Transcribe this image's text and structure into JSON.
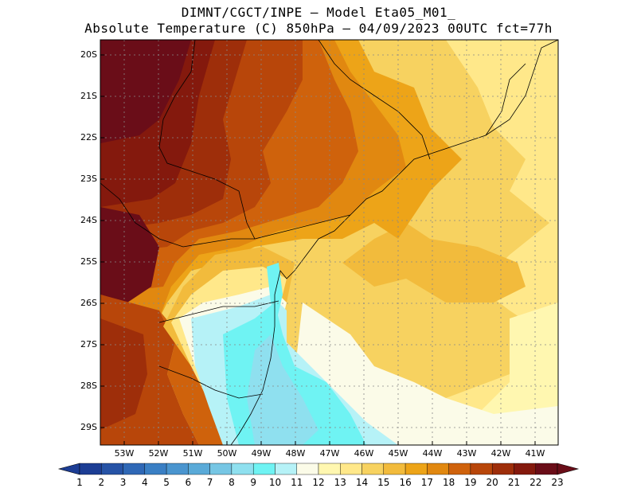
{
  "title": {
    "line1": "DIMNT/CGCT/INPE –  Model Eta05_M01_",
    "line2": "Absolute Temperature (C) 850hPa –  04/09/2023 00UTC fct=77h"
  },
  "map": {
    "lat_labels": [
      "20S",
      "21S",
      "22S",
      "23S",
      "24S",
      "25S",
      "26S",
      "27S",
      "28S",
      "29S"
    ],
    "lon_labels": [
      "53W",
      "52W",
      "51W",
      "50W",
      "49W",
      "48W",
      "47W",
      "46W",
      "45W",
      "44W",
      "43W",
      "42W",
      "41W"
    ]
  },
  "colorbar": {
    "labels": [
      "1",
      "2",
      "3",
      "4",
      "5",
      "6",
      "7",
      "8",
      "9",
      "10",
      "11",
      "12",
      "13",
      "14",
      "15",
      "16",
      "17",
      "18",
      "19",
      "20",
      "21",
      "22",
      "23"
    ],
    "colors": [
      "#1c3d94",
      "#2653a6",
      "#2f68b6",
      "#3a7fc4",
      "#4a95cf",
      "#5aaad8",
      "#76c6e4",
      "#8fe0ef",
      "#6ff3f3",
      "#b6f2f7",
      "#fbfbe8",
      "#fff7b0",
      "#ffe88a",
      "#f7d260",
      "#f2bb3c",
      "#eda418",
      "#e18810",
      "#cf620c",
      "#b8460a",
      "#9e2e0a",
      "#84190d",
      "#6a0d18"
    ]
  },
  "field_colors": {
    "t11": "#fbfbe8",
    "t12": "#fff7b0",
    "t13": "#ffe88a",
    "t14": "#f7d260",
    "t15": "#f2bb3c",
    "t16": "#eda418",
    "t17": "#e18810",
    "t18": "#cf620c",
    "t19": "#b8460a",
    "t20": "#9e2e0a",
    "t21": "#84190d",
    "t22": "#6a0d18",
    "t10": "#b6f2f7",
    "t9": "#6ff3f3",
    "t8": "#8fe0ef"
  }
}
